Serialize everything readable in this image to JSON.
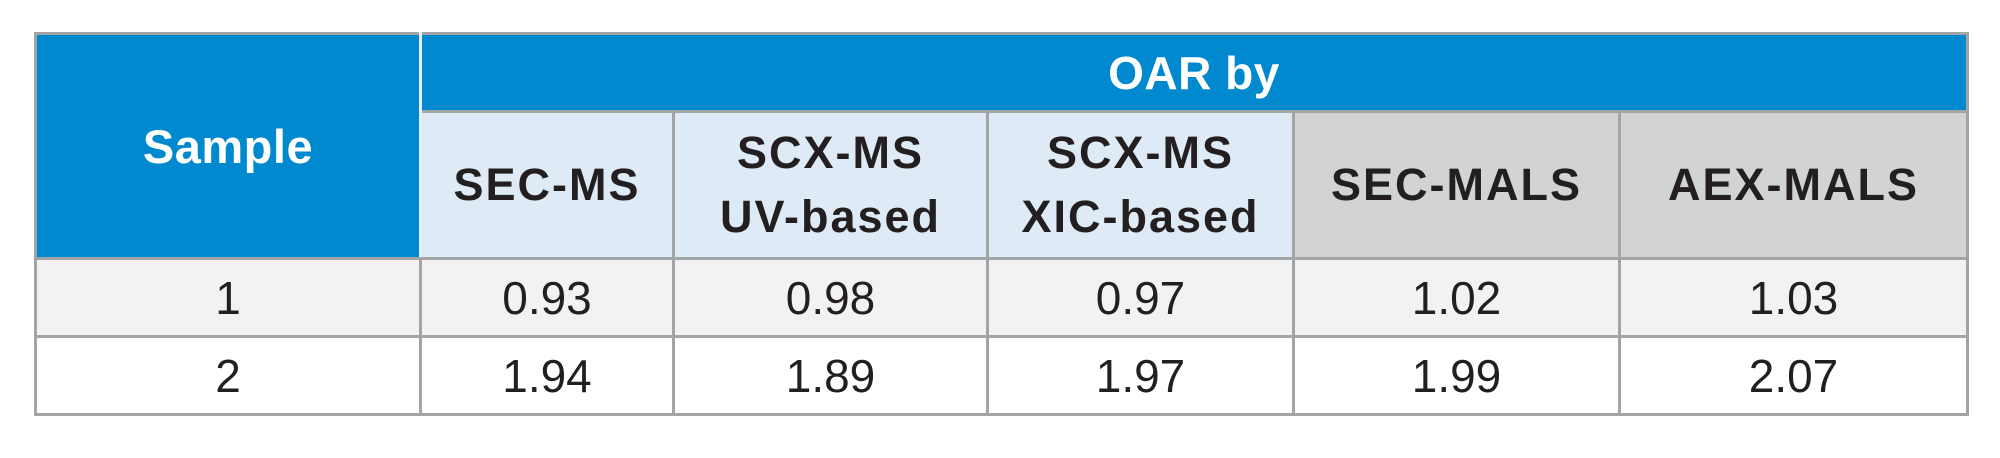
{
  "colors": {
    "header_blue": "#0089cf",
    "subheader_light_blue": "#deebf7",
    "subheader_gray": "#d1d3d4",
    "row_odd": "#f2f2f4",
    "row_even": "#ffffff",
    "border": "#a2a4a6",
    "text_dark": "#231f20",
    "text_light": "#ffffff"
  },
  "table": {
    "sample_header": "Sample",
    "group_header": "OAR by",
    "columns": [
      {
        "line1": "SEC-MS",
        "line2": ""
      },
      {
        "line1": "SCX-MS",
        "line2": "UV-based"
      },
      {
        "line1": "SCX-MS",
        "line2": "XIC-based"
      },
      {
        "line1": "SEC-MALS",
        "line2": ""
      },
      {
        "line1": "AEX-MALS",
        "line2": ""
      }
    ],
    "rows": [
      {
        "sample": "1",
        "values": [
          "0.93",
          "0.98",
          "0.97",
          "1.02",
          "1.03"
        ]
      },
      {
        "sample": "2",
        "values": [
          "1.94",
          "1.89",
          "1.97",
          "1.99",
          "2.07"
        ]
      }
    ]
  },
  "chart_data": {
    "type": "table",
    "title": "OAR by",
    "columns": [
      "Sample",
      "SEC-MS",
      "SCX-MS UV-based",
      "SCX-MS XIC-based",
      "SEC-MALS",
      "AEX-MALS"
    ],
    "rows": [
      [
        "1",
        0.93,
        0.98,
        0.97,
        1.02,
        1.03
      ],
      [
        "2",
        1.94,
        1.89,
        1.97,
        1.99,
        2.07
      ]
    ]
  }
}
